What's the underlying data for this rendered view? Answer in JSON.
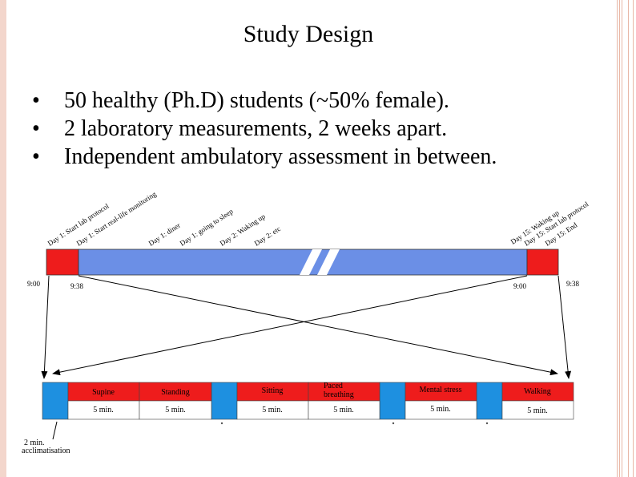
{
  "title": "Study Design",
  "bullets": [
    "50 healthy (Ph.D) students (~50% female).",
    "2 laboratory measurements, 2 weeks apart.",
    "Independent ambulatory assessment in between."
  ],
  "timeline": {
    "events": [
      "Day 1: Start lab protocol",
      "Day 1: Start real-life monitoring",
      "Day 1: diner",
      "Day 1: going to sleep",
      "Day 2: Waking up",
      "Day 2: etc",
      "Day 15: Waking up",
      "Day 15: Start lab protocol",
      "Day 15: End"
    ],
    "times": {
      "t1": "9:00",
      "t2": "9:38",
      "t3": "9:00",
      "t4": "9:38"
    }
  },
  "protocol": {
    "phases": [
      {
        "name": "Supine",
        "duration": "5 min."
      },
      {
        "name": "Standing",
        "duration": "5 min."
      },
      {
        "name": "Sitting",
        "duration": "5 min."
      },
      {
        "name": "Paced breathing",
        "duration": "5 min."
      },
      {
        "name": "Mental stress",
        "duration": "5 min."
      },
      {
        "name": "Walking",
        "duration": "5 min."
      }
    ],
    "acclimatisation": {
      "line1": "2 min.",
      "line2": "acclimatisation"
    }
  },
  "colors": {
    "red": "#ee1c1c",
    "blue": "#1e90e0",
    "timeline_blue": "#6b8fe6"
  }
}
